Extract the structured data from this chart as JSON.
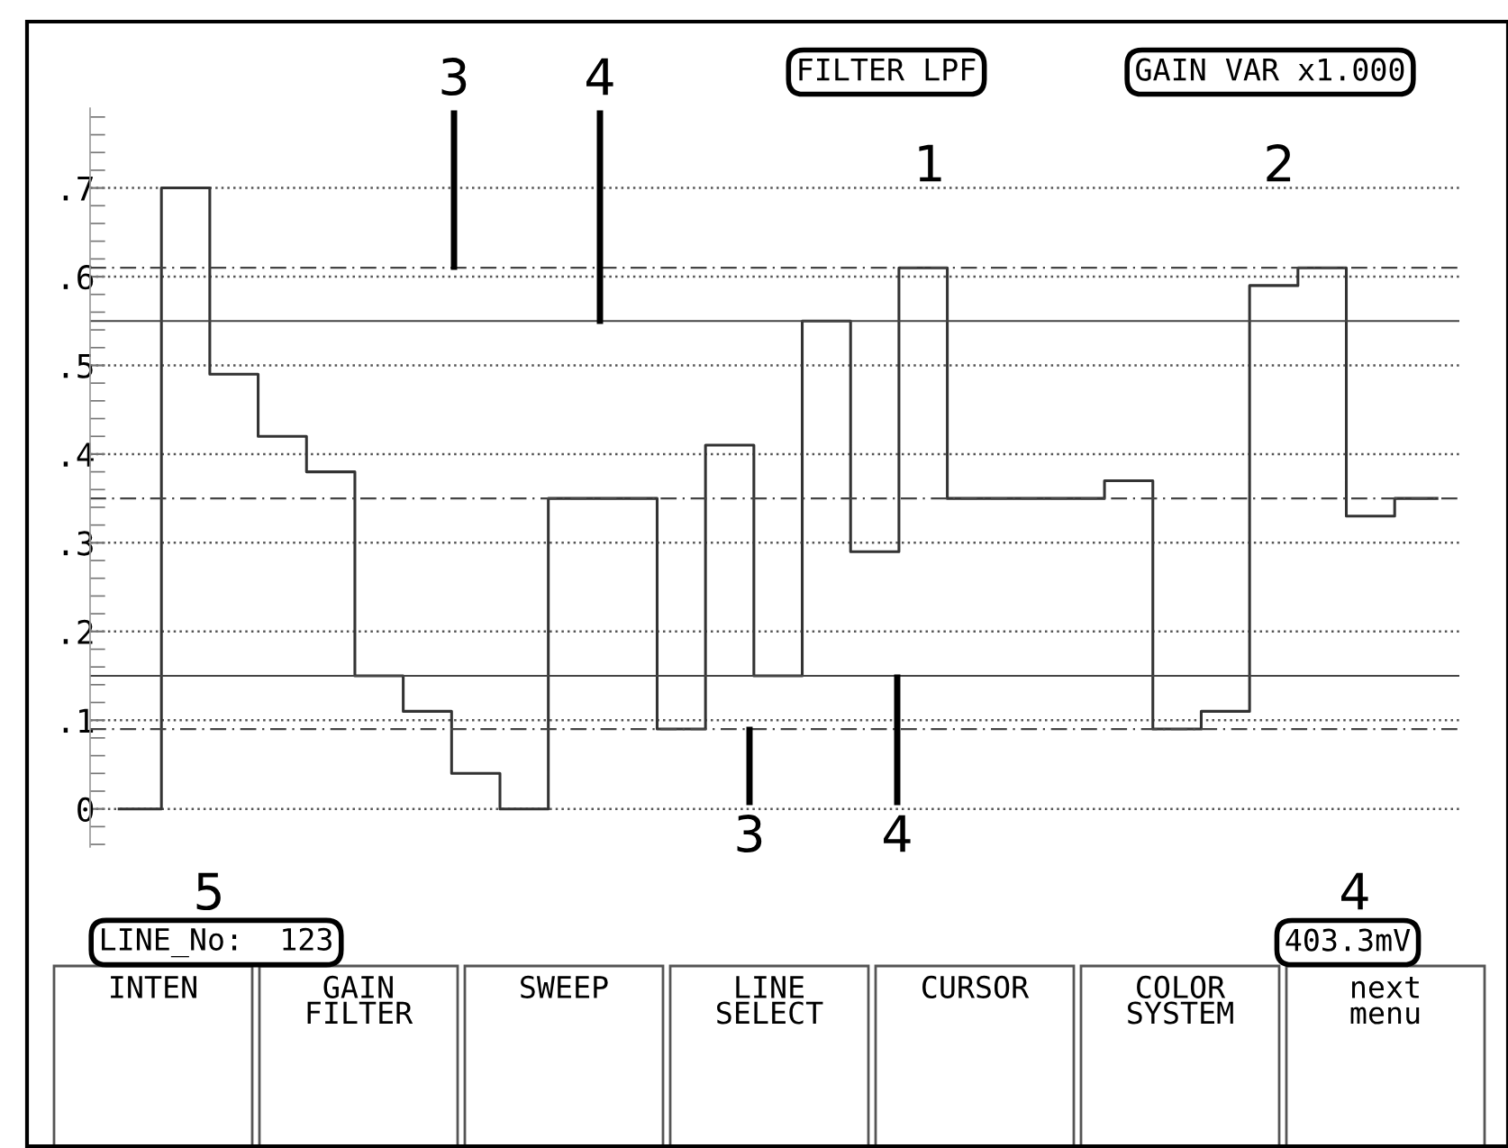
{
  "chart_data": {
    "type": "step",
    "categories": [
      null,
      null,
      null,
      null,
      null,
      null,
      null,
      null,
      null,
      null,
      null,
      null,
      null,
      null,
      null,
      null,
      null,
      null,
      null,
      null,
      null,
      null,
      null,
      null,
      null,
      null,
      null,
      null,
      null,
      null,
      null,
      null,
      null,
      null,
      null,
      null,
      null,
      null,
      null,
      null,
      null,
      null,
      null,
      null,
      null,
      null,
      null,
      null,
      null,
      null,
      null,
      null,
      null,
      null,
      null,
      null,
      null,
      null,
      null,
      null,
      null,
      null,
      null,
      null,
      null,
      null,
      null,
      null,
      null,
      null,
      null,
      null,
      null,
      null,
      null,
      null,
      null,
      null,
      null,
      null,
      null,
      null,
      null,
      null,
      null,
      null,
      null,
      null,
      null,
      null,
      null,
      null,
      null,
      null,
      null,
      null,
      null,
      null,
      null,
      null,
      null,
      null,
      null,
      null,
      null,
      null,
      null,
      null,
      null,
      null
    ],
    "series": [
      {
        "color": "#333333",
        "values": [
          0,
          0,
          0,
          0,
          0.7,
          0.7,
          0.7,
          0.7,
          0.49,
          0.49,
          0.49,
          0.49,
          0.42,
          0.42,
          0.42,
          0.42,
          0.38,
          0.38,
          0.38,
          0.38,
          0.15,
          0.15,
          0.15,
          0.15,
          0.11,
          0.11,
          0.11,
          0.11,
          0.04,
          0.04,
          0.04,
          0.04,
          0,
          0,
          0,
          0,
          0.35,
          0.35,
          0.35,
          0.35,
          0.35,
          0.35,
          0.35,
          0.35,
          0.35,
          0.09,
          0.09,
          0.09,
          0.09,
          0.41,
          0.41,
          0.41,
          0.41,
          0.15,
          0.15,
          0.15,
          0.15,
          0.55,
          0.55,
          0.55,
          0.55,
          0.29,
          0.29,
          0.29,
          0.29,
          0.61,
          0.61,
          0.61,
          0.61,
          0.35,
          0.35,
          0.35,
          0.35,
          0.35,
          0.35,
          0.35,
          0.35,
          0.35,
          0.35,
          0.35,
          0.35,
          0.35,
          0.37,
          0.37,
          0.37,
          0.37,
          0.09,
          0.09,
          0.09,
          0.09,
          0.11,
          0.11,
          0.11,
          0.11,
          0.59,
          0.59,
          0.59,
          0.59,
          0.61,
          0.61,
          0.61,
          0.61,
          0.33,
          0.33,
          0.33,
          0.33,
          0.35,
          0.35,
          0.35,
          0.35
        ]
      }
    ],
    "ylim": [
      -0.043,
      0.79
    ],
    "yticks": [
      0,
      {
        "value": 0.1,
        "label": ".1"
      },
      {
        "value": 0.2,
        "label": ".2"
      },
      {
        "value": 0.3,
        "label": ".3"
      },
      {
        "value": 0.4,
        "label": ".4"
      },
      {
        "value": 0.5,
        "label": ".5"
      },
      {
        "value": 0.6,
        "label": ".6"
      },
      {
        "value": 0.7,
        "label": ".7"
      }
    ],
    "tick_labels": "y",
    "grid": "y",
    "ref_lines": [
      {
        "axis": "y",
        "value": 0.61,
        "line_style": "dashed",
        "color": "#444444"
      },
      {
        "axis": "y",
        "value": 0.55,
        "line_style": "solid",
        "color": "#444444"
      },
      {
        "axis": "y",
        "value": 0.35,
        "line_style": "dashed",
        "color": "#444444"
      },
      {
        "axis": "y",
        "value": 0.09,
        "line_style": "dashed",
        "color": "#444444"
      },
      {
        "axis": "y",
        "value": 0.15,
        "line_style": "solid",
        "color": "#444444"
      }
    ],
    "annotations": [
      "FILTER LPF",
      "1",
      "GAIN VAR x1.000",
      "2",
      "LINE_No:  123",
      "5",
      "403.3mV",
      "4",
      "3",
      "4",
      "3",
      "4",
      "INTEN",
      "GAIN\nFILTER",
      "SWEEP",
      "LINE\nSELECT",
      "CURSOR",
      "COLOR\nSYSTEM",
      "next\nmenu"
    ]
  }
}
